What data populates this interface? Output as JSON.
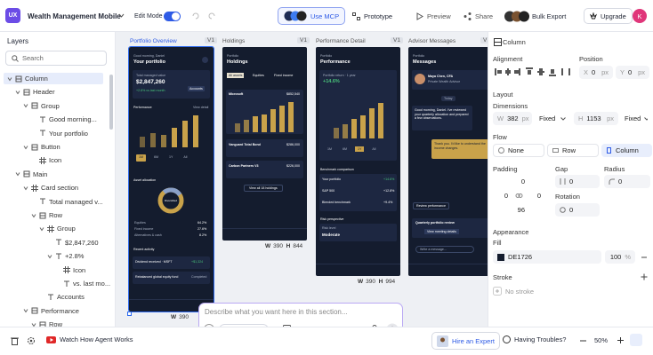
{
  "topbar": {
    "logo": "UX",
    "project": "Wealth Management Mobile",
    "edit_mode": "Edit Mode",
    "mcp": "Use MCP",
    "prototype": "Prototype",
    "preview": "Preview",
    "share": "Share",
    "export": "Bulk Export",
    "upgrade": "Upgrade",
    "avatar": "K"
  },
  "layers": {
    "title": "Layers",
    "search": "Search",
    "items": [
      "Column",
      "Header",
      "Group",
      "Good morning...",
      "Your portfolio",
      "Button",
      "Icon",
      "Main",
      "Card section",
      "Total managed v...",
      "Row",
      "Group",
      "$2,847,260",
      "+2.8%",
      "Icon",
      "vs. last mo...",
      "Accounts",
      "Performance",
      "Row"
    ]
  },
  "frames": [
    {
      "label": "Portfolio Overview",
      "version": "V1",
      "greeting": "Good morning, Daniel",
      "title": "Your portfolio",
      "card_label": "Total managed value",
      "card_value": "$2,847,260",
      "card_change": "+2.8% vs last month",
      "card_button": "Accounts",
      "section1": "Performance",
      "section1_link": "View detail",
      "tabs": [
        "1M",
        "6M",
        "1Y",
        "All"
      ],
      "section2": "Asset allocation",
      "donut": "Diversified",
      "allocation": [
        [
          "Equities",
          "64.2%"
        ],
        [
          "Fixed income",
          "27.6%"
        ],
        [
          "Alternatives & cash",
          "8.2%"
        ]
      ],
      "section3": "Recent activity",
      "activity": [
        [
          "Dividend received · MSFT",
          "+$1,324"
        ],
        [
          "Rebalanced global equity fund",
          "Completed"
        ]
      ],
      "width_label": "W",
      "width": "390"
    },
    {
      "label": "Holdings",
      "version": "V1",
      "kicker": "Portfolio",
      "title": "Holdings",
      "tabs": [
        "All assets",
        "Equities",
        "Fixed income"
      ],
      "rows": [
        [
          "Microsoft",
          "$852,540"
        ],
        [
          "Vanguard Total Bond",
          "$286,000"
        ],
        [
          "Carbon Partners V3",
          "$226,000"
        ]
      ],
      "button": "View all 18 holdings",
      "width_label": "W",
      "width": "390",
      "height_label": "H",
      "height": "844"
    },
    {
      "label": "Performance Detail",
      "version": "V1",
      "kicker": "Portfolio",
      "title": "Performance",
      "card_label": "Portfolio return · 1 year",
      "card_value": "+14.6%",
      "tabs": [
        "1M",
        "6M",
        "1Y",
        "All"
      ],
      "section1": "Benchmark comparison",
      "rows": [
        [
          "Your portfolio",
          "+14.6%"
        ],
        [
          "S&P 500",
          "+12.8%"
        ],
        [
          "Blended benchmark",
          "+9.4%"
        ]
      ],
      "section2": "Risk perspective",
      "risk_label": "Risk level",
      "risk_value": "Moderate",
      "width_label": "W",
      "width": "390",
      "height_label": "H",
      "height": "994"
    },
    {
      "label": "Advisor Messages",
      "version": "V1",
      "kicker": "Portfolio",
      "title": "Messages",
      "advisor": "Maya Chen, CFA",
      "advisor_role": "Private Wealth Advisor",
      "day": "Today",
      "message": "Good morning, Daniel. I've reviewed your quarterly allocation and prepared a few observations.",
      "reply": "Thank you. I'd like to understand the income changes.",
      "chip": "Review performance",
      "meeting": "Quarterly portfolio review",
      "meeting_link": "View meeting details",
      "input": "Write a message..."
    }
  ],
  "prompt": {
    "placeholder": "Describe what you want here in this section...",
    "style_guide": "Style Guide"
  },
  "properties": {
    "title": "Column",
    "alignment": "Alignment",
    "position": "Position",
    "x_label": "X",
    "x": "0",
    "y_label": "Y",
    "y": "0",
    "unit": "px",
    "layout": "Layout",
    "dimensions": "Dimensions",
    "w_label": "W",
    "w": "382",
    "h_label": "H",
    "h": "1153",
    "sizing": "Fixed",
    "flow": "Flow",
    "flow_options": [
      "None",
      "Row",
      "Column"
    ],
    "padding": "Padding",
    "gap": "Gap",
    "radius": "Radius",
    "pad_values": [
      "0",
      "0",
      "0",
      "96"
    ],
    "gap_value": "0",
    "radius_value": "0",
    "rotation": "Rotation",
    "rotation_value": "0",
    "appearance": "Appearance",
    "fill": "Fill",
    "fill_value": "DE1726",
    "opacity": "100",
    "percent": "%",
    "stroke": "Stroke",
    "no_stroke": "No stroke"
  },
  "bottombar": {
    "watch": "Watch How Agent Works",
    "hire": "Hire an Expert",
    "help": "Having Troubles?",
    "zoom": "50%"
  }
}
